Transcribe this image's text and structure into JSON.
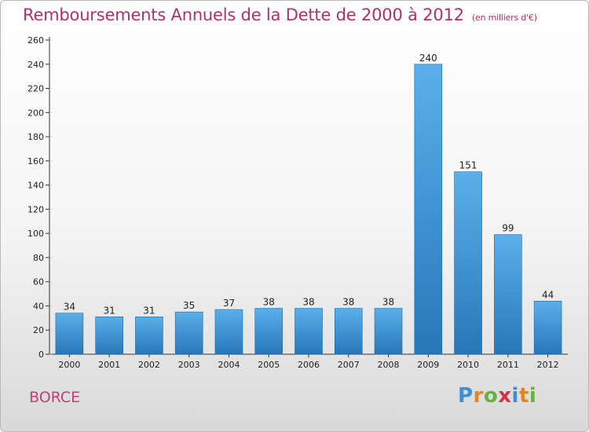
{
  "colors": {
    "title": "#b0306a",
    "place": "#c2407a",
    "bar_top": "#5ab0ea",
    "bar_bottom": "#2777b8",
    "axis": "#333333",
    "grid": "#aaaaaa"
  },
  "chart_data": {
    "type": "bar",
    "title": "Remboursements Annuels de la Dette de 2000 à 2012",
    "subtitle": "(en milliers d'€)",
    "xlabel": "",
    "ylabel": "",
    "categories": [
      "2000",
      "2001",
      "2002",
      "2003",
      "2004",
      "2005",
      "2006",
      "2007",
      "2008",
      "2009",
      "2010",
      "2011",
      "2012"
    ],
    "values": [
      34,
      31,
      31,
      35,
      37,
      38,
      38,
      38,
      38,
      240,
      151,
      99,
      44
    ],
    "data_labels": [
      "34",
      "31",
      "31",
      "35",
      "37",
      "38",
      "38",
      "38",
      "38",
      "240",
      "151",
      "99",
      "44"
    ],
    "yticks": [
      0,
      20,
      40,
      60,
      80,
      100,
      120,
      140,
      160,
      180,
      200,
      220,
      240,
      260
    ],
    "ylim": [
      0,
      260
    ],
    "grid": false,
    "legend": "none"
  },
  "place_name": "BORCE",
  "logo": {
    "text": "Proxiti",
    "letters": [
      "P",
      "r",
      "o",
      "x",
      "i",
      "t",
      "i"
    ],
    "letter_colors": [
      "#3a8fd6",
      "#e3871d",
      "#64b33a",
      "#d3324a",
      "#3a8fd6",
      "#e3871d",
      "#64b33a"
    ]
  }
}
